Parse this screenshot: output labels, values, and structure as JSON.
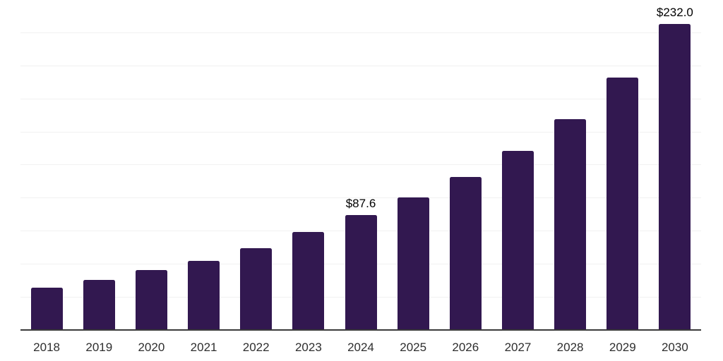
{
  "chart_data": {
    "type": "bar",
    "title": "",
    "xlabel": "",
    "ylabel": "",
    "categories": [
      "2018",
      "2019",
      "2020",
      "2021",
      "2022",
      "2023",
      "2024",
      "2025",
      "2026",
      "2027",
      "2028",
      "2029",
      "2030"
    ],
    "values": [
      32.5,
      38.5,
      46.0,
      53.0,
      62.5,
      74.4,
      87.6,
      100.6,
      116.1,
      136.2,
      160.1,
      191.2,
      232.0
    ],
    "labeled_points": [
      {
        "category": "2024",
        "label": "$87.6"
      },
      {
        "category": "2030",
        "label": "$232.0"
      }
    ],
    "ylim": [
      0,
      250
    ],
    "gridline_step": 25,
    "grid": "horizontal",
    "legend": "none",
    "colors": {
      "bar": "#321850",
      "gridline": "#f1f1f1",
      "axis_line": "#3a3a3a",
      "tick_label": "#2e2e2e",
      "point_label": "#000000",
      "background": "#ffffff"
    }
  }
}
